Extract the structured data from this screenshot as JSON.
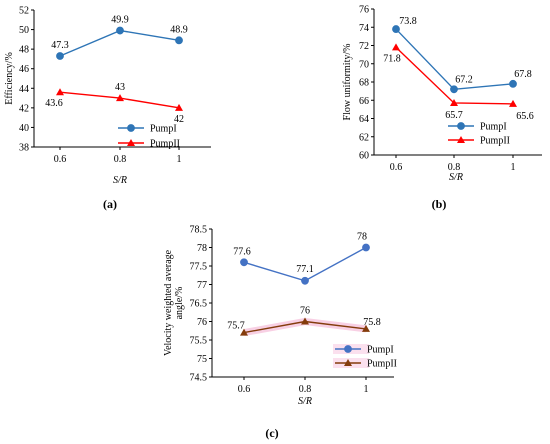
{
  "chart_data": [
    {
      "type": "line",
      "panel_label": "(a)",
      "xlabel": "S/R",
      "ylabel": "Efficiency/%",
      "categories": [
        "0.6",
        "0.8",
        "1"
      ],
      "ylim": [
        38,
        52
      ],
      "yticks": [
        "38",
        "40",
        "42",
        "44",
        "46",
        "48",
        "50",
        "52"
      ],
      "series": [
        {
          "name": "PumpI",
          "values": [
            47.3,
            49.9,
            48.9
          ],
          "labels": [
            "47.3",
            "49.9",
            "48.9"
          ],
          "color": "#2e75b6",
          "marker": "circle"
        },
        {
          "name": "PumpII",
          "values": [
            43.6,
            43,
            42
          ],
          "labels": [
            "43.6",
            "43",
            "42"
          ],
          "color": "#ff0000",
          "marker": "triangle"
        }
      ],
      "legend": "bottom-right"
    },
    {
      "type": "line",
      "panel_label": "(b)",
      "xlabel": "S/R",
      "ylabel": "Flow uniformity/%",
      "categories": [
        "0.6",
        "0.8",
        "1"
      ],
      "ylim": [
        60,
        76
      ],
      "yticks": [
        "60",
        "62",
        "64",
        "66",
        "68",
        "70",
        "72",
        "74",
        "76"
      ],
      "series": [
        {
          "name": "PumpI",
          "values": [
            73.8,
            67.2,
            67.8
          ],
          "labels": [
            "73.8",
            "67.2",
            "67.8"
          ],
          "color": "#2e75b6",
          "marker": "circle"
        },
        {
          "name": "PumpII",
          "values": [
            71.8,
            65.7,
            65.6
          ],
          "labels": [
            "71.8",
            "65.7",
            "65.6"
          ],
          "color": "#ff0000",
          "marker": "triangle"
        }
      ],
      "legend": "bottom-right"
    },
    {
      "type": "line",
      "panel_label": "(c)",
      "xlabel": "S/R",
      "ylabel": "Velocity weighted average angle/%",
      "categories": [
        "0.6",
        "0.8",
        "1"
      ],
      "ylim": [
        74.5,
        78.5
      ],
      "yticks": [
        "74.5",
        "75",
        "75.5",
        "76",
        "76.5",
        "77",
        "77.5",
        "78",
        "78.5"
      ],
      "series": [
        {
          "name": "PumpI",
          "values": [
            77.6,
            77.1,
            78
          ],
          "labels": [
            "77.6",
            "77.1",
            "78"
          ],
          "color": "#4472c4",
          "marker": "circle"
        },
        {
          "name": "PumpII",
          "values": [
            75.7,
            76,
            75.8
          ],
          "labels": [
            "75.7",
            "76",
            "75.8"
          ],
          "color": "#843c0c",
          "marker": "triangle"
        }
      ],
      "legend": "bottom-right"
    }
  ]
}
